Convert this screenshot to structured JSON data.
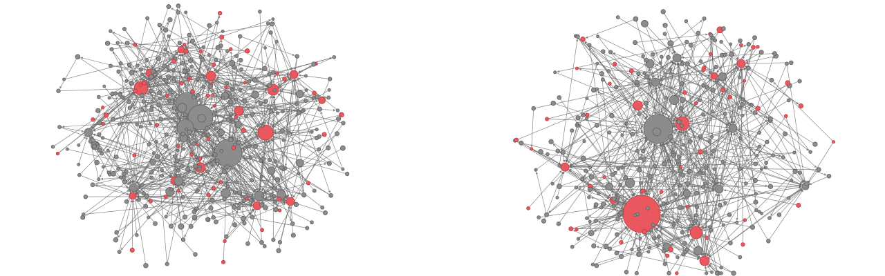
{
  "figure": {
    "panels": [
      {
        "name": "left-network",
        "node_classes": [
          "grey",
          "red"
        ],
        "arrowheads": true
      },
      {
        "name": "right-network",
        "node_classes": [
          "grey",
          "red"
        ],
        "arrowheads": true
      }
    ]
  },
  "colors": {
    "background": "#ffffff",
    "edge": "#6f6f6f",
    "node_grey": "#8c8c8c",
    "node_red": "#e8585e"
  }
}
